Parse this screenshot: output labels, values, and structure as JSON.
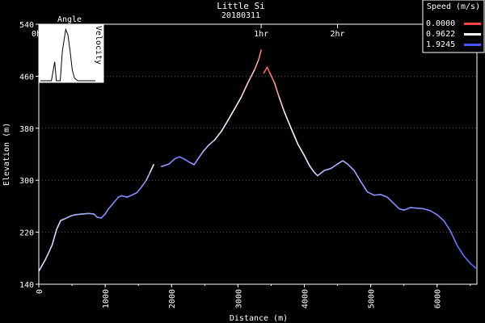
{
  "chart_data": {
    "type": "line",
    "title": "Little Si",
    "subtitle": "20180311",
    "xlabel": "Distance (m)",
    "ylabel": "Elevation (m)",
    "xlim": [
      0,
      6600
    ],
    "ylim": [
      140,
      540
    ],
    "x_ticks": [
      "0",
      "1000",
      "2000",
      "3000",
      "4000",
      "5000",
      "6000"
    ],
    "y_ticks": [
      "140",
      "220",
      "300",
      "380",
      "460",
      "540"
    ],
    "time_markers": [
      {
        "label": "0hr",
        "x": 0
      },
      {
        "label": "1hr",
        "x": 3350
      },
      {
        "label": "2hr",
        "x": 4500
      }
    ],
    "legend": {
      "title": "Speed (m/s)",
      "placement": "top-right",
      "entries": [
        {
          "label": "0.0000",
          "color": "#ff4040"
        },
        {
          "label": "0.9622",
          "color": "#ffffff"
        },
        {
          "label": "1.9245",
          "color": "#4455ff"
        }
      ]
    },
    "speed_color_scale": {
      "min": 0.0,
      "mid": 0.9622,
      "max": 1.9245
    },
    "series": [
      {
        "points": [
          [
            0,
            160,
            1.1
          ],
          [
            100,
            178,
            1.15
          ],
          [
            200,
            200,
            1.2
          ],
          [
            270,
            225,
            1.15
          ],
          [
            330,
            238,
            1.2
          ],
          [
            400,
            241,
            1.3
          ],
          [
            480,
            245,
            1.35
          ],
          [
            550,
            247,
            1.4
          ],
          [
            650,
            248,
            1.4
          ],
          [
            750,
            249,
            1.45
          ],
          [
            830,
            248,
            1.5
          ],
          [
            880,
            243,
            1.55
          ],
          [
            940,
            242,
            1.6
          ],
          [
            1000,
            248,
            1.6
          ],
          [
            1050,
            256,
            1.6
          ],
          [
            1100,
            262,
            1.6
          ],
          [
            1150,
            268,
            1.65
          ],
          [
            1200,
            274,
            1.65
          ],
          [
            1250,
            276,
            1.6
          ],
          [
            1330,
            274,
            1.6
          ],
          [
            1400,
            277,
            1.6
          ],
          [
            1480,
            281,
            1.6
          ],
          [
            1550,
            290,
            1.6
          ],
          [
            1620,
            300,
            1.5
          ],
          [
            1680,
            313,
            1.2
          ],
          [
            1730,
            324,
            0.9
          ],
          [
            1740,
            null,
            1.0
          ],
          [
            1850,
            321,
            1.4
          ],
          [
            1960,
            325,
            1.6
          ],
          [
            2050,
            333,
            1.65
          ],
          [
            2120,
            336,
            1.65
          ],
          [
            2200,
            332,
            1.65
          ],
          [
            2280,
            327,
            1.6
          ],
          [
            2340,
            324,
            1.55
          ],
          [
            2400,
            333,
            1.5
          ],
          [
            2480,
            345,
            1.4
          ],
          [
            2560,
            354,
            1.3
          ],
          [
            2650,
            362,
            1.2
          ],
          [
            2750,
            375,
            1.1
          ],
          [
            2850,
            392,
            1.0
          ],
          [
            2950,
            410,
            0.9
          ],
          [
            3050,
            428,
            0.8
          ],
          [
            3150,
            450,
            0.7
          ],
          [
            3250,
            470,
            0.6
          ],
          [
            3310,
            485,
            0.4
          ],
          [
            3350,
            500,
            0.25
          ],
          [
            3360,
            null,
            0.2
          ],
          [
            3390,
            465,
            0.2
          ],
          [
            3440,
            474,
            0.1
          ],
          [
            3480,
            465,
            0.2
          ],
          [
            3550,
            450,
            0.4
          ],
          [
            3620,
            428,
            0.6
          ],
          [
            3700,
            405,
            0.8
          ],
          [
            3800,
            380,
            0.95
          ],
          [
            3900,
            356,
            1.0
          ],
          [
            4000,
            338,
            1.05
          ],
          [
            4080,
            322,
            1.1
          ],
          [
            4150,
            312,
            1.2
          ],
          [
            4200,
            307,
            1.3
          ],
          [
            4300,
            315,
            1.35
          ],
          [
            4400,
            318,
            1.4
          ],
          [
            4500,
            325,
            1.4
          ],
          [
            4580,
            330,
            1.35
          ],
          [
            4650,
            325,
            1.4
          ],
          [
            4750,
            315,
            1.45
          ],
          [
            4850,
            298,
            1.5
          ],
          [
            4950,
            282,
            1.55
          ],
          [
            5050,
            277,
            1.6
          ],
          [
            5150,
            278,
            1.6
          ],
          [
            5250,
            274,
            1.6
          ],
          [
            5350,
            264,
            1.6
          ],
          [
            5430,
            256,
            1.6
          ],
          [
            5500,
            254,
            1.6
          ],
          [
            5600,
            258,
            1.6
          ],
          [
            5700,
            257,
            1.6
          ],
          [
            5800,
            256,
            1.6
          ],
          [
            5900,
            253,
            1.6
          ],
          [
            6000,
            247,
            1.65
          ],
          [
            6100,
            238,
            1.65
          ],
          [
            6200,
            222,
            1.7
          ],
          [
            6300,
            200,
            1.75
          ],
          [
            6400,
            184,
            1.8
          ],
          [
            6500,
            172,
            1.8
          ],
          [
            6580,
            165,
            1.85
          ]
        ]
      }
    ],
    "inset": {
      "title": "Angle",
      "side_label": "Velocity",
      "curve": [
        [
          0.0,
          0.0
        ],
        [
          0.2,
          0.0
        ],
        [
          0.26,
          0.35
        ],
        [
          0.29,
          0.0
        ],
        [
          0.36,
          0.0
        ],
        [
          0.4,
          0.55
        ],
        [
          0.46,
          0.95
        ],
        [
          0.5,
          0.85
        ],
        [
          0.54,
          0.55
        ],
        [
          0.58,
          0.2
        ],
        [
          0.62,
          0.05
        ],
        [
          0.68,
          0.0
        ],
        [
          1.0,
          0.0
        ]
      ]
    }
  }
}
